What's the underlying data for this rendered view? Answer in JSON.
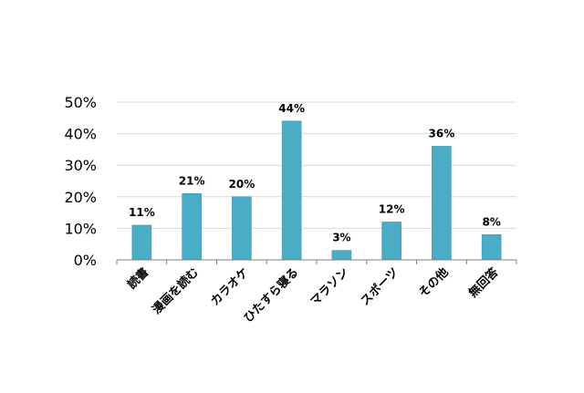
{
  "chart_data": {
    "type": "bar",
    "categories": [
      "読書",
      "漫画を読む",
      "カラオケ",
      "ひたすら寝る",
      "マラソン",
      "スポーツ",
      "その他",
      "無回答"
    ],
    "values": [
      11,
      21,
      20,
      44,
      3,
      12,
      36,
      8
    ],
    "data_labels": [
      "11%",
      "21%",
      "20%",
      "44%",
      "3%",
      "12%",
      "36%",
      "8%"
    ],
    "yticks": [
      0,
      10,
      20,
      30,
      40,
      50
    ],
    "ytick_labels": [
      "0%",
      "10%",
      "20%",
      "30%",
      "40%",
      "50%"
    ],
    "ylim": [
      0,
      50
    ],
    "grid": true,
    "legend": "none",
    "title": "",
    "xlabel": "",
    "ylabel": "",
    "colors": {
      "bar": "#4BACC6",
      "bar_edge": "#3F96AE",
      "grid": "#D9D9D9",
      "axis": "#808080",
      "text": "#000000"
    }
  }
}
